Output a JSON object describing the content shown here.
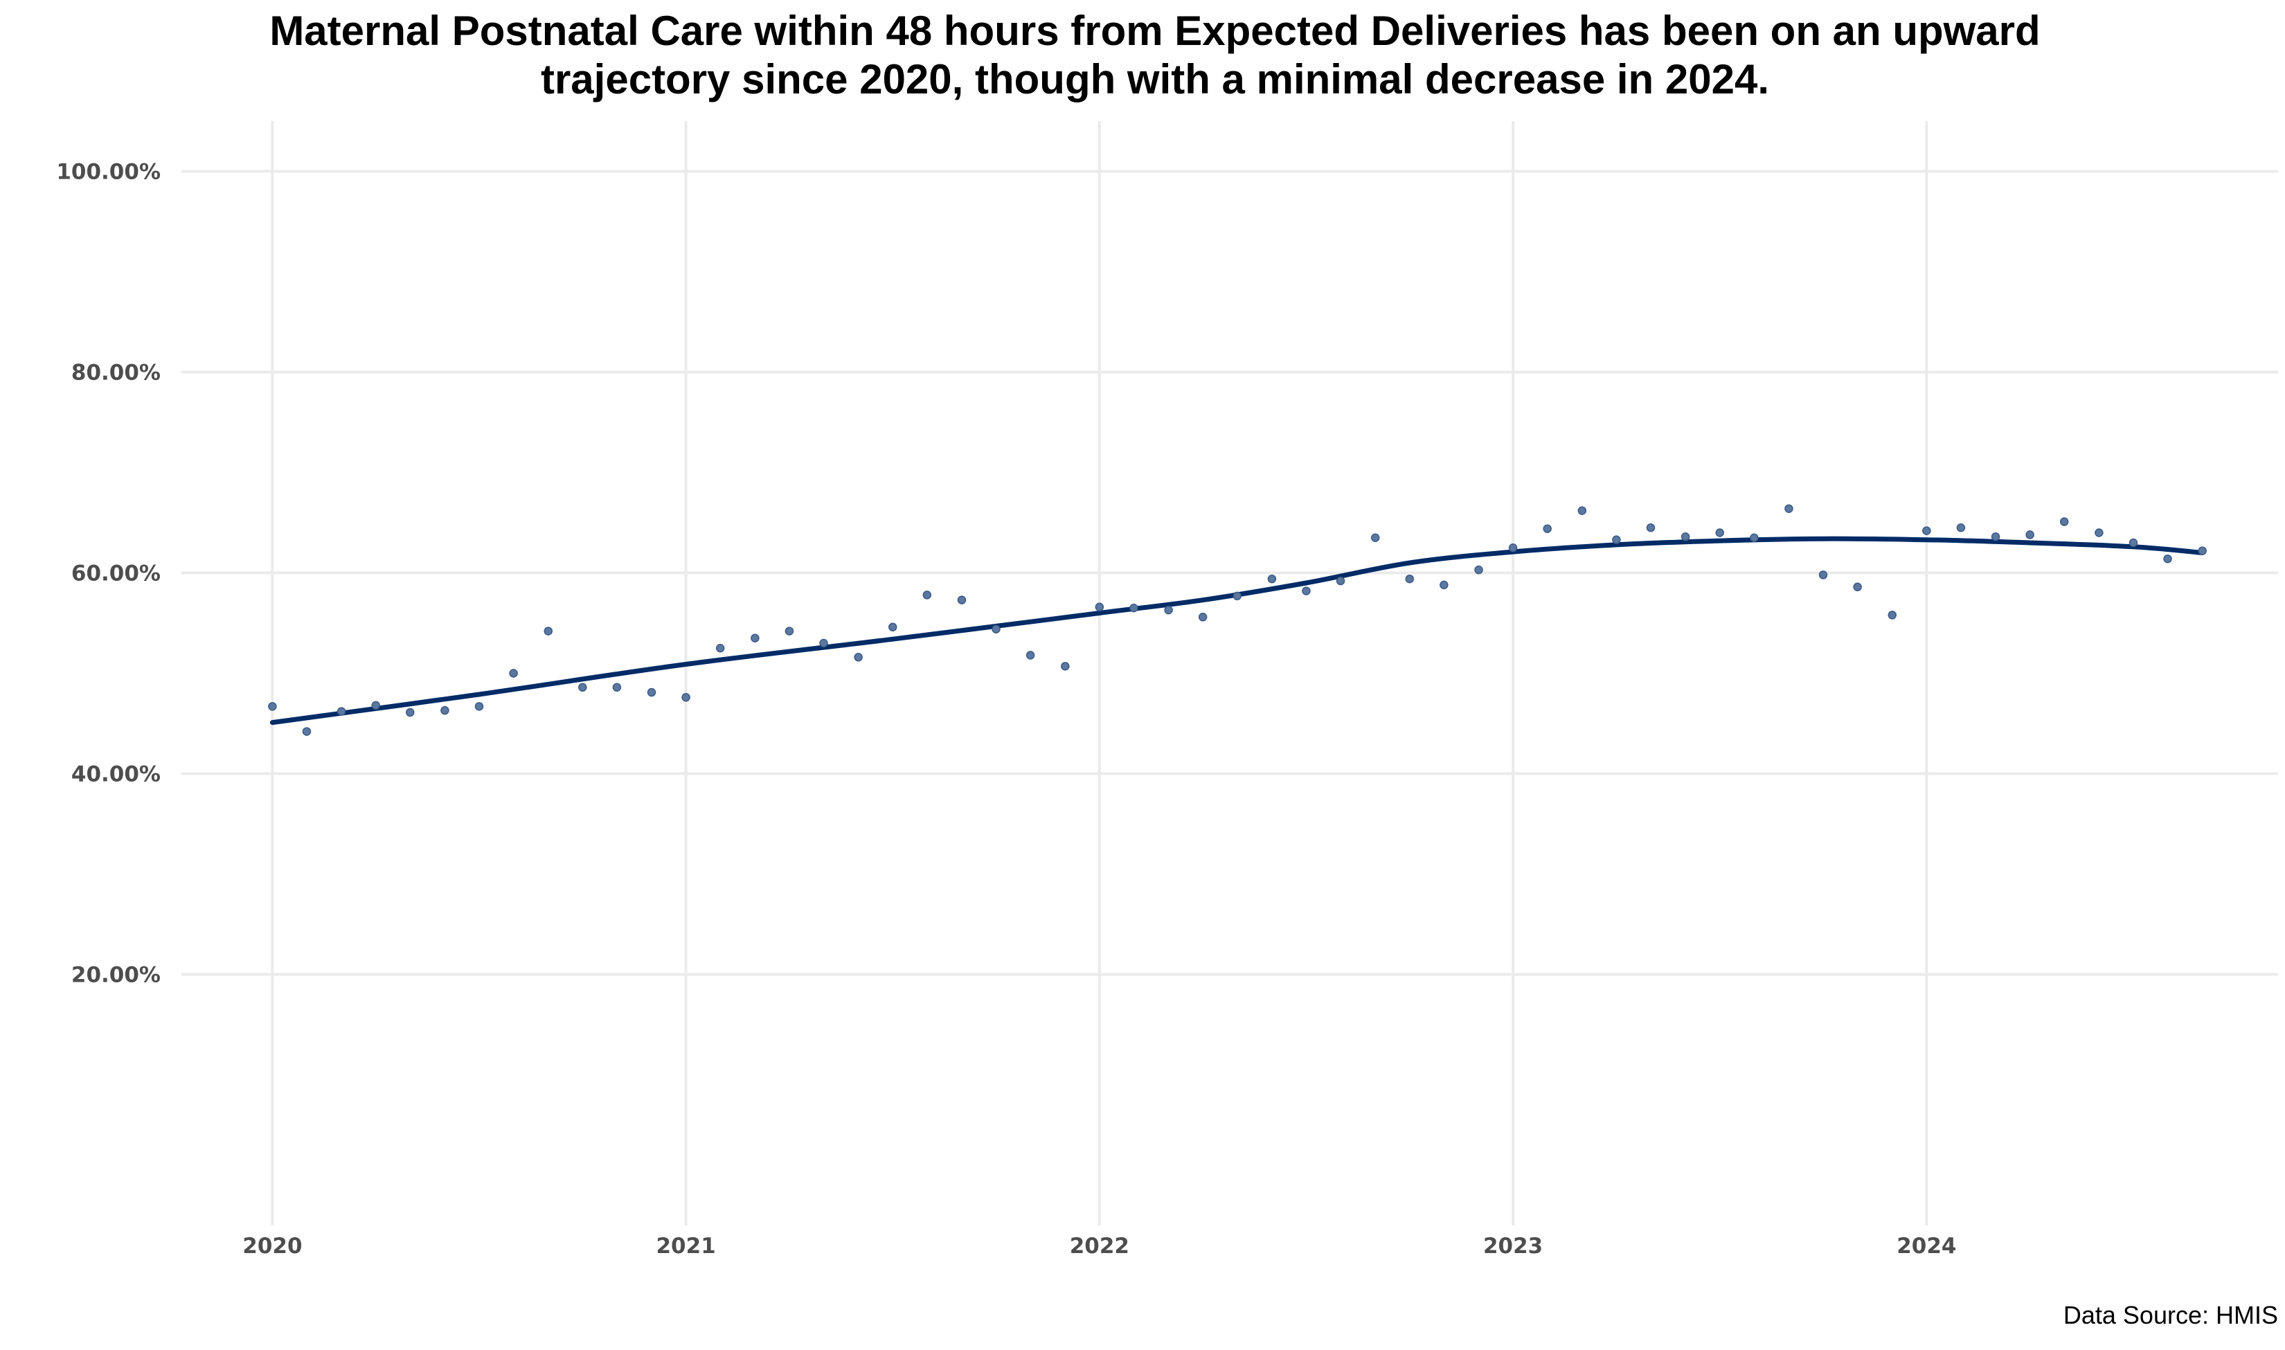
{
  "chart_data": {
    "type": "scatter",
    "title": [
      "Maternal Postnatal Care within 48 hours from Expected Deliveries has been on an upward",
      "trajectory since 2020, though with a minimal decrease in 2024."
    ],
    "xlabel": "",
    "ylabel": "",
    "caption": "Data Source: HMIS",
    "xlim": [
      2019.78,
      2024.85
    ],
    "ylim": [
      -5,
      105
    ],
    "x_ticks": [
      2020,
      2021,
      2022,
      2023,
      2024
    ],
    "x_tick_labels": [
      "2020",
      "2021",
      "2022",
      "2023",
      "2024"
    ],
    "y_ticks": [
      20,
      40,
      60,
      80,
      100
    ],
    "y_tick_labels": [
      "20.00%",
      "40.00%",
      "60.00%",
      "80.00%",
      "100.00%"
    ],
    "grid": true,
    "legend": "none",
    "colors": {
      "points": "#5a78a0",
      "trend": "#002b66",
      "grid": "#ebebeb",
      "tick_text": "#4d4d4d"
    },
    "series": [
      {
        "kind": "points",
        "x": [
          2020.0,
          2020.083,
          2020.167,
          2020.25,
          2020.333,
          2020.417,
          2020.5,
          2020.583,
          2020.667,
          2020.75,
          2020.833,
          2020.917,
          2021.0,
          2021.083,
          2021.167,
          2021.25,
          2021.333,
          2021.417,
          2021.5,
          2021.583,
          2021.667,
          2021.75,
          2021.833,
          2021.917,
          2022.0,
          2022.083,
          2022.167,
          2022.25,
          2022.333,
          2022.417,
          2022.5,
          2022.583,
          2022.667,
          2022.75,
          2022.833,
          2022.917,
          2023.0,
          2023.083,
          2023.167,
          2023.25,
          2023.333,
          2023.417,
          2023.5,
          2023.583,
          2023.667,
          2023.75,
          2023.833,
          2023.917,
          2024.0,
          2024.083,
          2024.167,
          2024.25,
          2024.333,
          2024.417,
          2024.5,
          2024.583,
          2024.667
        ],
        "y": [
          46.7,
          44.2,
          46.2,
          46.8,
          46.1,
          46.3,
          46.7,
          50.0,
          54.2,
          48.6,
          48.6,
          48.1,
          47.6,
          52.5,
          53.5,
          54.2,
          53.0,
          51.6,
          54.6,
          57.8,
          57.3,
          54.4,
          51.8,
          50.7,
          56.6,
          56.5,
          56.3,
          55.6,
          57.7,
          59.4,
          58.2,
          59.2,
          63.5,
          59.4,
          58.8,
          60.3,
          62.5,
          64.4,
          66.2,
          63.3,
          64.5,
          63.6,
          64.0,
          63.5,
          66.4,
          59.8,
          58.6,
          55.8,
          64.2,
          64.5,
          63.6,
          63.8,
          65.1,
          64.0,
          63.0,
          61.4,
          62.2
        ]
      },
      {
        "kind": "trend",
        "x": [
          2020.0,
          2020.5,
          2021.0,
          2021.5,
          2022.0,
          2022.25,
          2022.5,
          2022.75,
          2023.0,
          2023.25,
          2023.5,
          2023.75,
          2024.0,
          2024.25,
          2024.5,
          2024.667
        ],
        "y": [
          45.1,
          47.9,
          50.9,
          53.4,
          56.0,
          57.3,
          59.0,
          61.0,
          62.1,
          62.8,
          63.2,
          63.4,
          63.3,
          63.0,
          62.6,
          62.0
        ]
      }
    ]
  }
}
